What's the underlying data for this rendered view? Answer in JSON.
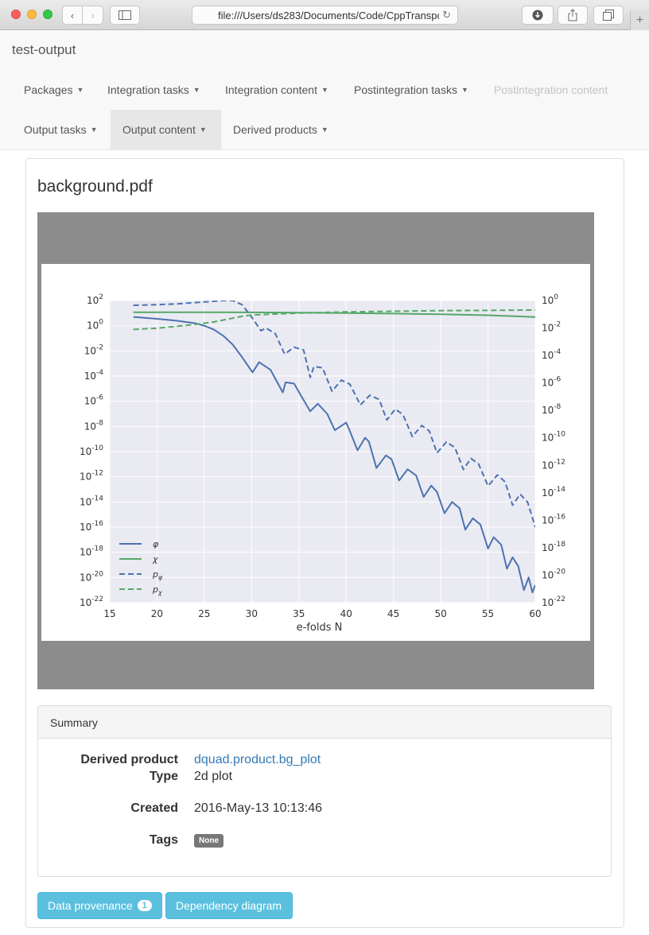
{
  "browser": {
    "url": "file:///Users/ds283/Documents/Code/CppTranspo"
  },
  "navbar": {
    "brand": "test-output",
    "items": [
      {
        "label": "Packages",
        "state": "normal"
      },
      {
        "label": "Integration tasks",
        "state": "normal"
      },
      {
        "label": "Integration content",
        "state": "normal"
      },
      {
        "label": "Postintegration tasks",
        "state": "normal"
      },
      {
        "label": "Postintegration content",
        "state": "disabled"
      },
      {
        "label": "Output tasks",
        "state": "normal"
      },
      {
        "label": "Output content",
        "state": "active"
      },
      {
        "label": "Derived products",
        "state": "normal"
      }
    ]
  },
  "page": {
    "title": "background.pdf"
  },
  "chart_data": {
    "type": "line",
    "xlabel": "e-folds N",
    "xlim": [
      15,
      60
    ],
    "x_ticks": [
      15,
      20,
      25,
      30,
      35,
      40,
      45,
      50,
      55,
      60
    ],
    "left_axis": {
      "scale": "log",
      "ylim_exponent": [
        -22,
        2
      ],
      "tick_exponents": [
        2,
        0,
        -2,
        -4,
        -6,
        -8,
        -10,
        -12,
        -14,
        -16,
        -18,
        -20,
        -22
      ]
    },
    "right_axis": {
      "scale": "log",
      "ylim_exponent": [
        -22,
        0
      ],
      "tick_exponents": [
        0,
        -2,
        -4,
        -6,
        -8,
        -10,
        -12,
        -14,
        -16,
        -18,
        -20,
        -22
      ]
    },
    "grid": true,
    "legend_position": "bottom-left",
    "series": [
      {
        "name": "φ",
        "style": "solid",
        "color": "#4c72b0",
        "axis": "left",
        "x": [
          17.5,
          20,
          22,
          24,
          25,
          26,
          27,
          28,
          29,
          30.1,
          30.8,
          32,
          33.3,
          33.6,
          34.5,
          35.5,
          36.2,
          37,
          38.0,
          38.8,
          40,
          40.3,
          41.2,
          42.0,
          42.4,
          43.2,
          44.2,
          44.8,
          45.6,
          46.5,
          47.4,
          48.2,
          49.0,
          49.6,
          50.4,
          51.2,
          52.0,
          52.6,
          53.4,
          54.2,
          55.0,
          55.6,
          56.4,
          57.0,
          57.6,
          58.2,
          58.8,
          59.3,
          59.7,
          60
        ],
        "y_exp": [
          0.7,
          0.55,
          0.4,
          0.2,
          0.0,
          -0.3,
          -0.8,
          -1.5,
          -2.5,
          -3.7,
          -2.9,
          -3.5,
          -5.3,
          -4.5,
          -4.6,
          -5.9,
          -6.8,
          -6.2,
          -7.0,
          -8.3,
          -7.7,
          -8.2,
          -9.9,
          -8.9,
          -9.2,
          -11.3,
          -10.3,
          -10.6,
          -12.3,
          -11.4,
          -11.9,
          -13.6,
          -12.7,
          -13.2,
          -14.9,
          -14.0,
          -14.5,
          -16.2,
          -15.3,
          -15.8,
          -17.7,
          -16.8,
          -17.4,
          -19.3,
          -18.4,
          -19.1,
          -21.0,
          -20.0,
          -21.2,
          -20.6
        ]
      },
      {
        "name": "χ",
        "style": "solid",
        "color": "#55a868",
        "axis": "right",
        "x": [
          17.5,
          25,
          30,
          35,
          40,
          45,
          50,
          55,
          60
        ],
        "y_exp": [
          -0.85,
          -0.85,
          -0.86,
          -0.88,
          -0.91,
          -0.95,
          -1.0,
          -1.07,
          -1.2
        ]
      },
      {
        "name": "p_φ",
        "style": "dashed",
        "color": "#4c72b0",
        "axis": "right",
        "x": [
          17.5,
          20,
          22,
          24,
          26,
          27,
          28,
          29,
          30,
          31,
          31.5,
          32.5,
          33.5,
          34.5,
          35.5,
          36.2,
          36.6,
          37.5,
          38.5,
          39.5,
          40.4,
          41.5,
          42.5,
          43.5,
          44.3,
          45.2,
          46.0,
          47.0,
          48.0,
          48.8,
          49.6,
          50.6,
          51.5,
          52.4,
          53.2,
          54.0,
          55.0,
          56.0,
          56.8,
          57.6,
          58.4,
          59.2,
          60
        ],
        "y_exp": [
          -0.35,
          -0.3,
          -0.25,
          -0.15,
          -0.05,
          0.0,
          0.0,
          -0.3,
          -1.2,
          -2.2,
          -2.0,
          -2.4,
          -3.9,
          -3.4,
          -3.6,
          -5.6,
          -4.8,
          -4.9,
          -6.6,
          -5.8,
          -6.1,
          -7.6,
          -6.9,
          -7.2,
          -8.7,
          -7.9,
          -8.3,
          -9.9,
          -9.1,
          -9.5,
          -11.1,
          -10.3,
          -10.7,
          -12.3,
          -11.5,
          -11.9,
          -13.5,
          -12.7,
          -13.2,
          -14.9,
          -14.1,
          -14.7,
          -16.5
        ]
      },
      {
        "name": "p_χ",
        "style": "dashed",
        "color": "#55a868",
        "axis": "left",
        "x": [
          17.5,
          20,
          22,
          24,
          26,
          27,
          28,
          29,
          30,
          35,
          40,
          45,
          50,
          55,
          60
        ],
        "y_exp": [
          -0.3,
          -0.2,
          -0.05,
          0.1,
          0.3,
          0.45,
          0.6,
          0.75,
          0.85,
          1.0,
          1.1,
          1.15,
          1.2,
          1.22,
          1.25
        ]
      }
    ]
  },
  "summary": {
    "heading": "Summary",
    "derived_product_label": "Derived product",
    "derived_product_value": "dquad.product.bg_plot",
    "type_label": "Type",
    "type_value": "2d plot",
    "created_label": "Created",
    "created_value": "2016-May-13 10:13:46",
    "tags_label": "Tags",
    "tags_value": "None"
  },
  "buttons": {
    "provenance_label": "Data provenance",
    "provenance_count": "1",
    "dependency_label": "Dependency diagram"
  }
}
